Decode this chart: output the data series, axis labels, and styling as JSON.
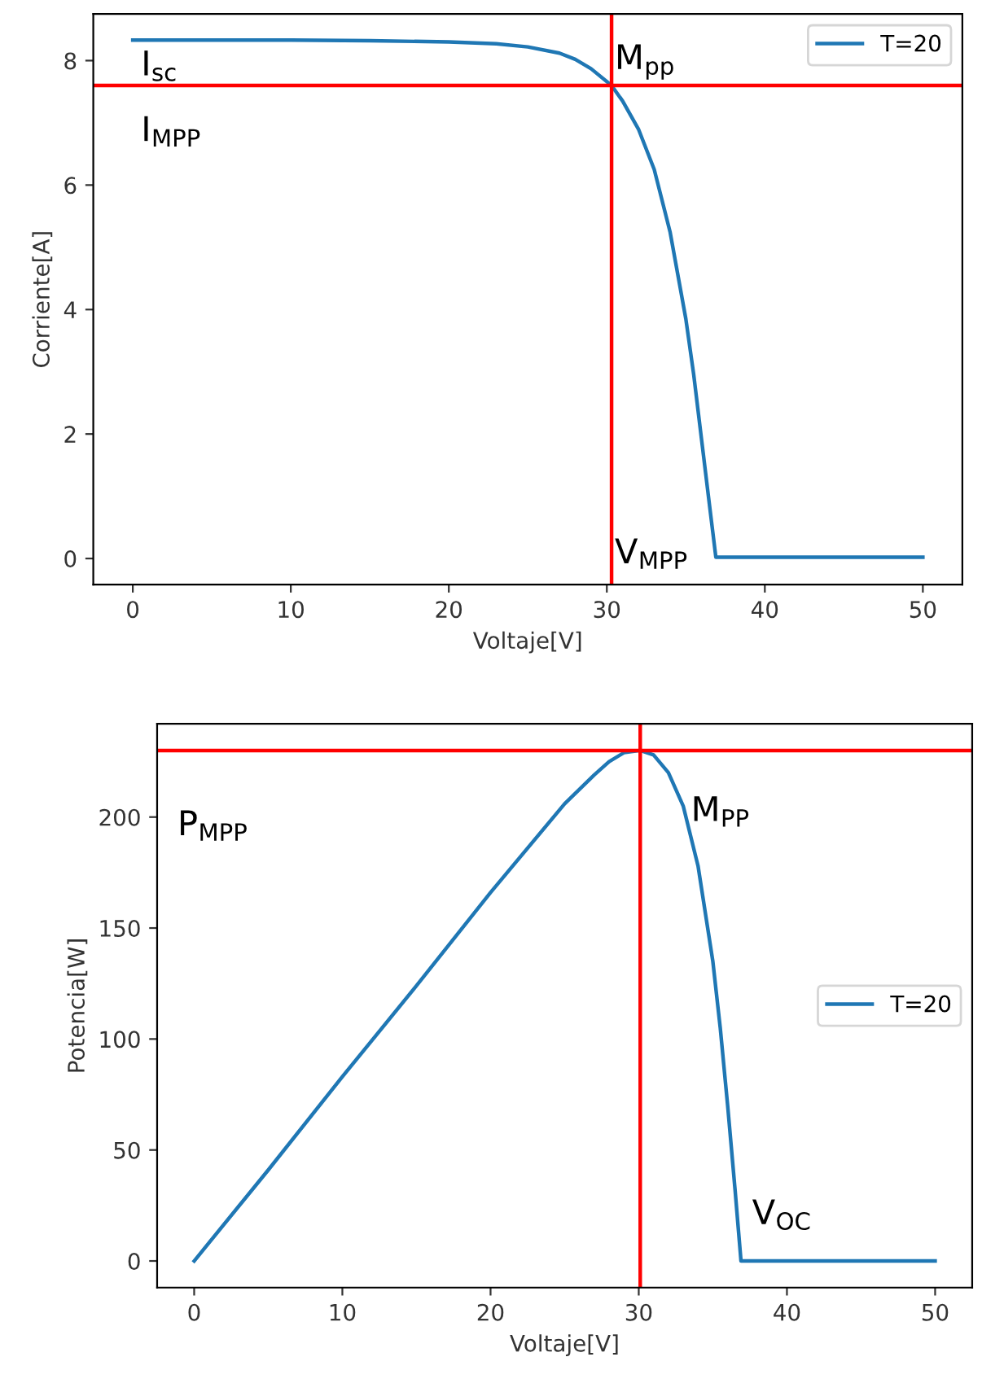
{
  "chart_data": [
    {
      "type": "line",
      "xlabel": "Voltaje[V]",
      "ylabel": "Corriente[A]",
      "xlim": [
        -2.5,
        52.5
      ],
      "ylim": [
        -0.42,
        8.75
      ],
      "xticks": [
        0,
        10,
        20,
        30,
        40,
        50
      ],
      "yticks": [
        0,
        2,
        4,
        6,
        8
      ],
      "legend": "top right",
      "grid": false,
      "series": [
        {
          "name": "T=20",
          "color": "#1f77b4",
          "x": [
            0,
            5,
            10,
            15,
            20,
            23,
            25,
            27,
            28,
            29,
            30.3,
            31,
            32,
            33,
            34,
            35,
            35.5,
            36,
            36.5,
            36.9,
            40,
            45,
            50
          ],
          "values": [
            8.33,
            8.33,
            8.33,
            8.32,
            8.3,
            8.27,
            8.22,
            8.12,
            8.02,
            7.87,
            7.6,
            7.35,
            6.9,
            6.25,
            5.25,
            3.85,
            2.95,
            1.9,
            0.85,
            0.02,
            0.02,
            0.02,
            0.02
          ]
        }
      ],
      "ref_lines": [
        {
          "axis": "y",
          "value": 7.6,
          "color": "#ff0000"
        },
        {
          "axis": "x",
          "value": 30.3,
          "color": "#ff0000"
        }
      ],
      "annotations": [
        "I$_{sc}$",
        "I$_{MPP}$",
        "M$_{pp}$",
        "V$_{MPP}$"
      ]
    },
    {
      "type": "line",
      "xlabel": "Voltaje[V]",
      "ylabel": "Potencia[W]",
      "xlim": [
        -2.5,
        52.5
      ],
      "ylim": [
        -12,
        242
      ],
      "xticks": [
        0,
        10,
        20,
        30,
        40,
        50
      ],
      "yticks": [
        0,
        50,
        100,
        150,
        200
      ],
      "legend": "right",
      "grid": false,
      "series": [
        {
          "name": "T=20",
          "color": "#1f77b4",
          "x": [
            0,
            5,
            10,
            15,
            20,
            25,
            27,
            28,
            29,
            30.1,
            31,
            32,
            33,
            34,
            35,
            35.5,
            36,
            36.5,
            36.9,
            40,
            45,
            50
          ],
          "values": [
            0,
            41,
            83,
            124,
            166,
            206,
            219,
            225,
            229,
            230,
            228,
            220,
            205,
            178,
            135,
            105,
            70,
            32,
            0,
            0,
            0,
            0
          ]
        }
      ],
      "ref_lines": [
        {
          "axis": "y",
          "value": 230,
          "color": "#ff0000"
        },
        {
          "axis": "x",
          "value": 30.1,
          "color": "#ff0000"
        }
      ],
      "annotations": [
        "P$_{MPP}$",
        "M$_{PP}$",
        "V$_{OC}$"
      ]
    }
  ]
}
